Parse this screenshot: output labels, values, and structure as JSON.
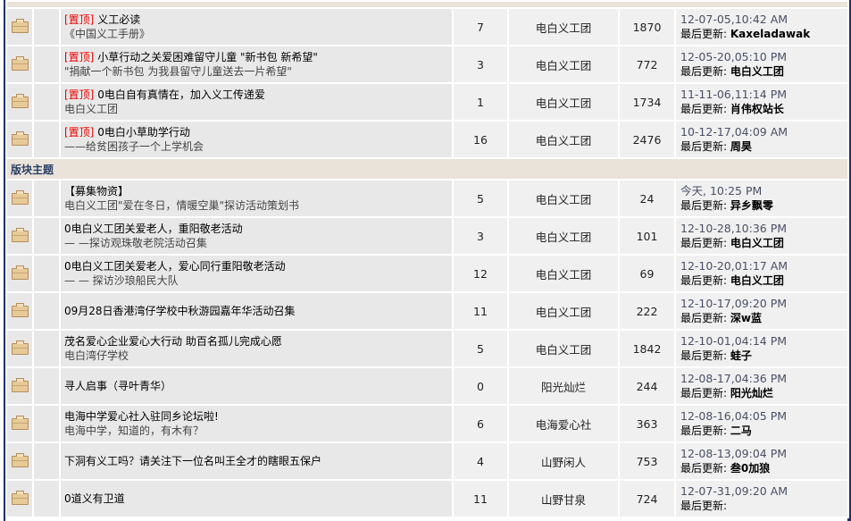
{
  "labels": {
    "sticky": "[置顶]",
    "last_update": "最后更新: "
  },
  "sticky_threads": [
    {
      "title": "义工必读",
      "subtitle": "《中国义工手册》",
      "replies": "7",
      "author": "电白义工团",
      "views": "1870",
      "date": "12-07-05,10:42 AM",
      "last_by": "Kaxeladawak"
    },
    {
      "title": "小草行动之关爱困难留守儿童 \"新书包 新希望\"",
      "subtitle": "\"捐献一个新书包 为我县留守儿童送去一片希望\"",
      "replies": "3",
      "author": "电白义工团",
      "views": "772",
      "date": "12-05-20,05:10 PM",
      "last_by": "电白义工团"
    },
    {
      "title": "0电白自有真情在，加入义工传递爱",
      "subtitle": "电白义工团",
      "replies": "1",
      "author": "电白义工团",
      "views": "1734",
      "date": "11-11-06,11:14 PM",
      "last_by": "肖伟权站长"
    },
    {
      "title": "0电白小草助学行动",
      "subtitle": "——给贫困孩子一个上学机会",
      "replies": "16",
      "author": "电白义工团",
      "views": "2476",
      "date": "10-12-17,04:09 AM",
      "last_by": "周昊"
    }
  ],
  "section_title": "版块主题",
  "threads": [
    {
      "title": "【募集物资】",
      "subtitle": "电白义工团\"爱在冬日，情暖空巢\"探访活动策划书",
      "replies": "5",
      "author": "电白义工团",
      "views": "24",
      "date": "今天, 10:25 PM",
      "last_by": "异乡飘零"
    },
    {
      "title": "0电白义工团关爱老人，重阳敬老活动",
      "subtitle": "— —探访观珠敬老院活动召集",
      "replies": "3",
      "author": "电白义工团",
      "views": "101",
      "date": "12-10-28,10:36 PM",
      "last_by": "电白义工团"
    },
    {
      "title": "0电白义工团关爱老人，爱心同行重阳敬老活动",
      "subtitle": "— — 探访沙琅船民大队",
      "replies": "12",
      "author": "电白义工团",
      "views": "69",
      "date": "12-10-20,01:17 AM",
      "last_by": "电白义工团"
    },
    {
      "title": "09月28日香港湾仔学校中秋游园嘉年华活动召集",
      "subtitle": "",
      "replies": "11",
      "author": "电白义工团",
      "views": "222",
      "date": "12-10-17,09:20 PM",
      "last_by": "深w蓝"
    },
    {
      "title": "茂名爱心企业爱心大行动 助百名孤儿完成心愿",
      "subtitle": "电白湾仔学校",
      "replies": "5",
      "author": "电白义工团",
      "views": "1842",
      "date": "12-10-01,04:14 PM",
      "last_by": "蛙子"
    },
    {
      "title": "寻人启事（寻叶青华）",
      "subtitle": "",
      "replies": "0",
      "author": "阳光灿烂",
      "views": "244",
      "date": "12-08-17,04:36 PM",
      "last_by": "阳光灿烂"
    },
    {
      "title": "电海中学爱心社入驻同乡论坛啦!",
      "subtitle": "电海中学，知道的，有木有？",
      "replies": "6",
      "author": "电海爱心社",
      "views": "363",
      "date": "12-08-16,04:05 PM",
      "last_by": "二马"
    },
    {
      "title": "下洞有义工吗？请关注下一位名叫王全才的瞎眼五保户",
      "subtitle": "",
      "replies": "4",
      "author": "山野闲人",
      "views": "753",
      "date": "12-08-13,09:04 PM",
      "last_by": "叁0加狼"
    },
    {
      "title": "0道义有卫道",
      "subtitle": "",
      "replies": "11",
      "author": "山野甘泉",
      "views": "724",
      "date": "12-07-31,09:20 AM",
      "last_by": ""
    }
  ]
}
